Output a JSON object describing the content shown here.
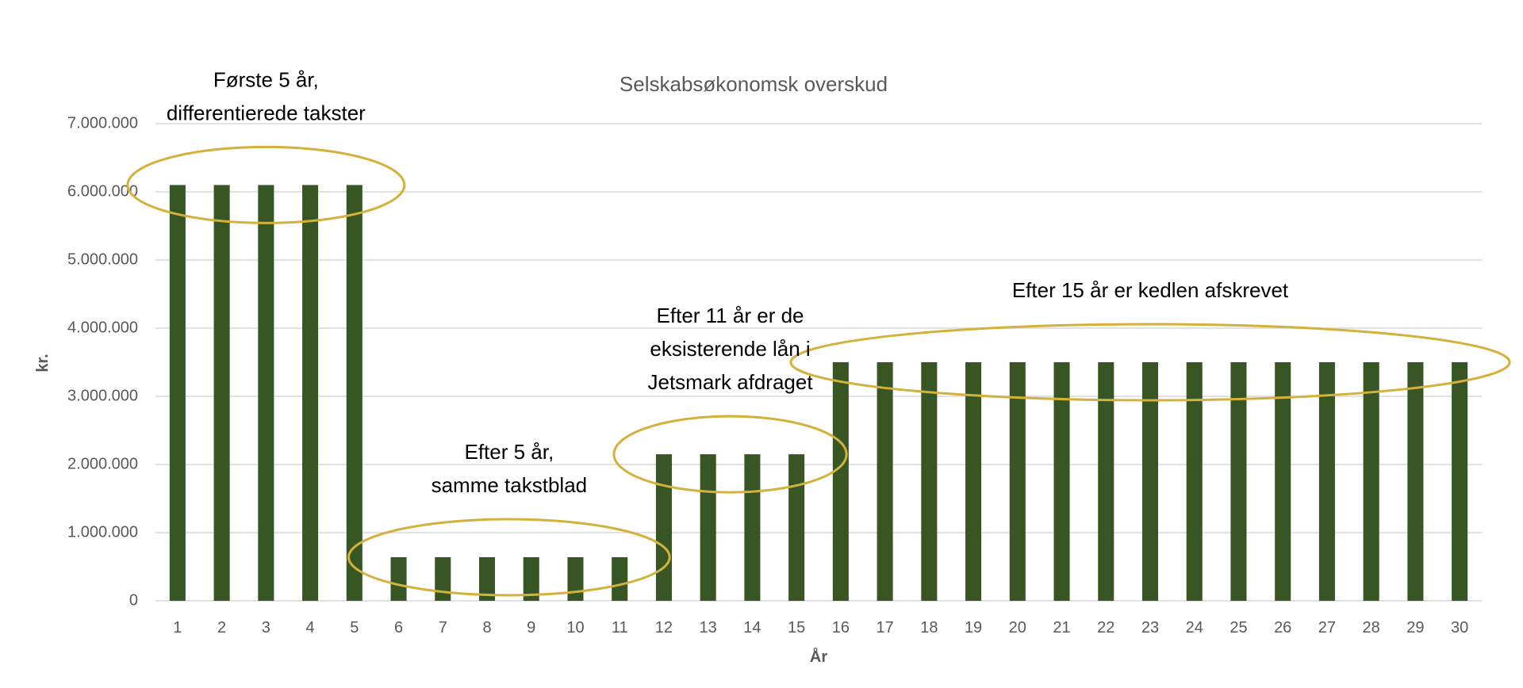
{
  "chart_data": {
    "type": "bar",
    "title": "Selskabsøkonomsk overskud",
    "xlabel": "År",
    "ylabel": "kr.",
    "ylim": [
      0,
      7000000
    ],
    "yticks": [
      "0",
      "1.000.000",
      "2.000.000",
      "3.000.000",
      "4.000.000",
      "5.000.000",
      "6.000.000",
      "7.000.000"
    ],
    "categories": [
      "1",
      "2",
      "3",
      "4",
      "5",
      "6",
      "7",
      "8",
      "9",
      "10",
      "11",
      "12",
      "13",
      "14",
      "15",
      "16",
      "17",
      "18",
      "19",
      "20",
      "21",
      "22",
      "23",
      "24",
      "25",
      "26",
      "27",
      "28",
      "29",
      "30"
    ],
    "values": [
      6100000,
      6100000,
      6100000,
      6100000,
      6100000,
      640000,
      640000,
      640000,
      640000,
      640000,
      640000,
      2150000,
      2150000,
      2150000,
      2150000,
      3500000,
      3500000,
      3500000,
      3500000,
      3500000,
      3500000,
      3500000,
      3500000,
      3500000,
      3500000,
      3500000,
      3500000,
      3500000,
      3500000,
      3500000
    ],
    "grid": true,
    "legend": "none",
    "bar_color": "#375623",
    "highlight_color": "#d4b13a",
    "annotations": [
      {
        "lines": [
          "Første 5 år,",
          "differentierede takster"
        ],
        "from": 1,
        "to": 5
      },
      {
        "lines": [
          "Efter 5 år,",
          "samme takstblad"
        ],
        "from": 6,
        "to": 11
      },
      {
        "lines": [
          "Efter 11 år er de",
          "eksisterende lån i",
          "Jetsmark afdraget"
        ],
        "from": 12,
        "to": 15
      },
      {
        "lines": [
          "Efter 15 år er kedlen afskrevet"
        ],
        "from": 16,
        "to": 30
      }
    ]
  }
}
